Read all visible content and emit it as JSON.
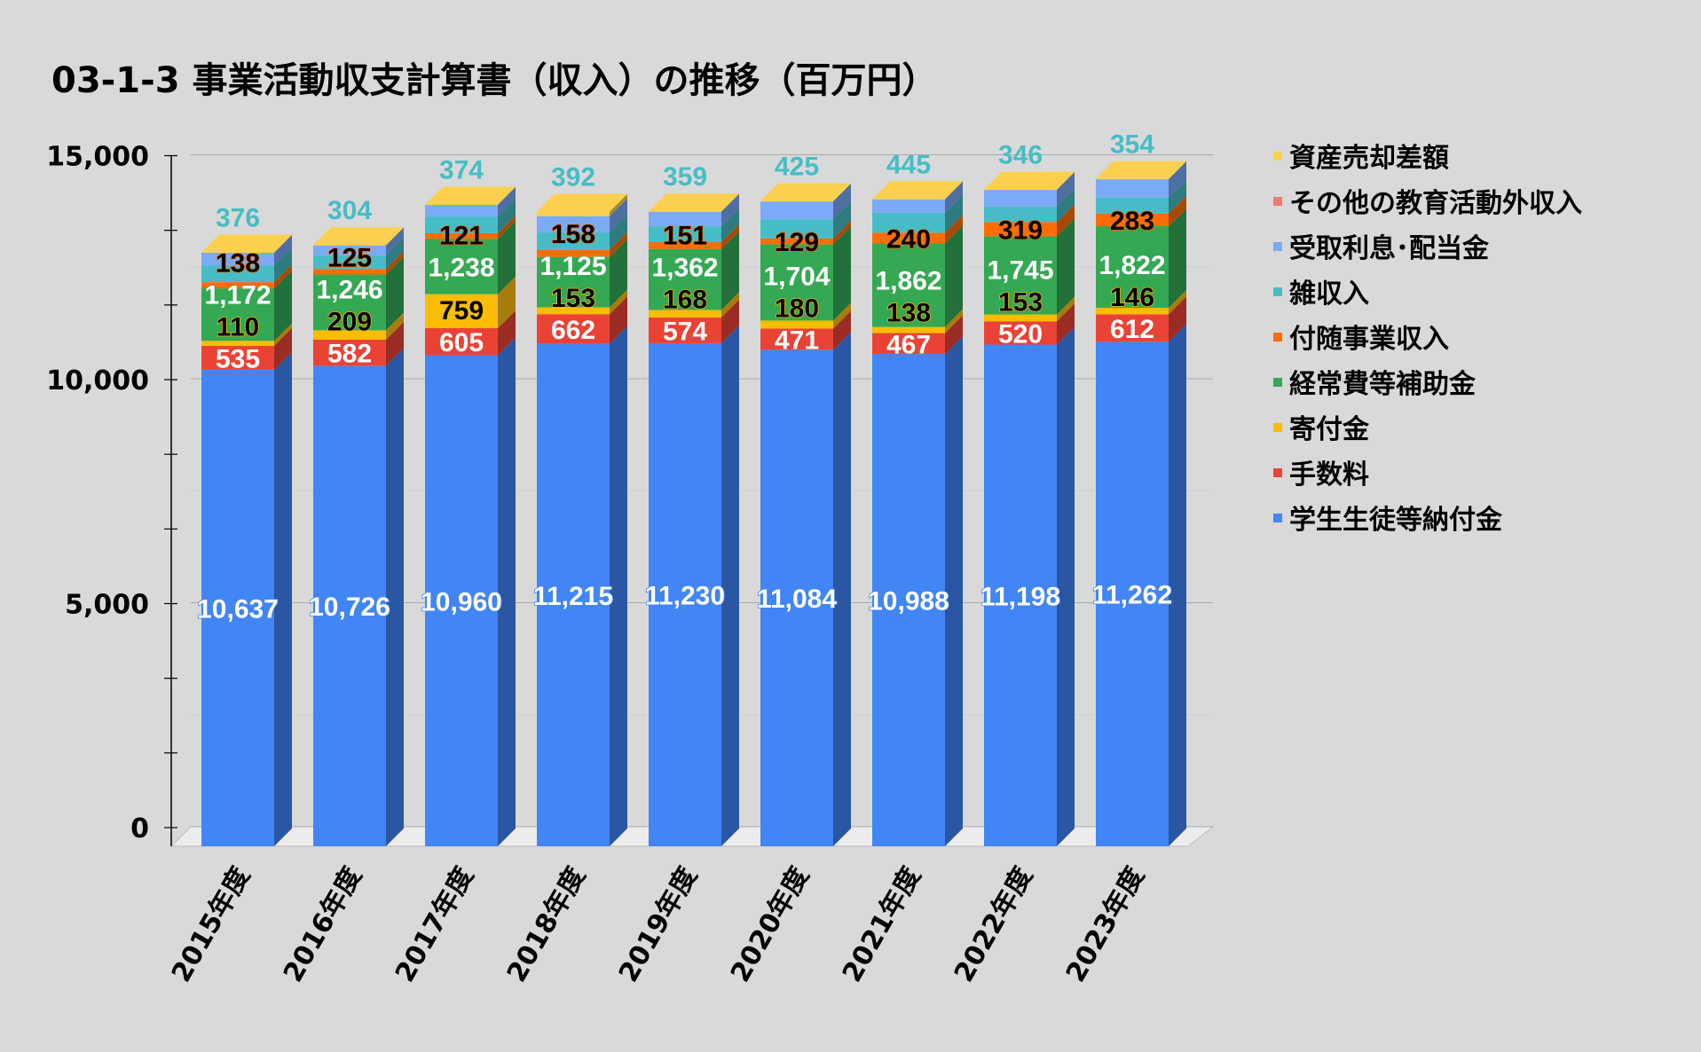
{
  "chart_data": {
    "type": "bar",
    "stacked": true,
    "three_d": true,
    "title": "03-1-3 事業活動収支計算書（収入）の推移（百万円）",
    "xlabel": "",
    "ylabel": "",
    "ylim": [
      0,
      15000
    ],
    "yticks": [
      "0",
      "5,000",
      "10,000",
      "15,000"
    ],
    "grid": true,
    "legend_position": "right",
    "categories": [
      "2015年度",
      "2016年度",
      "2017年度",
      "2018年度",
      "2019年度",
      "2020年度",
      "2021年度",
      "2022年度",
      "2023年度"
    ],
    "series": [
      {
        "name": "学生生徒等納付金",
        "color": "#4285F4",
        "side": "#2B56A3",
        "label_fill": "#ffffff",
        "label_stroke": "#4285F4",
        "labeled": true,
        "values": [
          10637,
          10726,
          10960,
          11215,
          11230,
          11084,
          10988,
          11198,
          11262
        ]
      },
      {
        "name": "手数料",
        "color": "#EA4335",
        "side": "#9A2C23",
        "label_fill": "#ffffff",
        "label_stroke": "#EA4335",
        "labeled": true,
        "values": [
          535,
          582,
          605,
          662,
          574,
          471,
          467,
          520,
          612
        ]
      },
      {
        "name": "寄付金",
        "color": "#FBBC04",
        "side": "#A67C0A",
        "label_fill": "#000000",
        "label_stroke": "#FBBC04",
        "labeled": true,
        "values": [
          110,
          209,
          759,
          153,
          168,
          180,
          138,
          153,
          146
        ]
      },
      {
        "name": "経常費等補助金",
        "color": "#34A853",
        "side": "#22703A",
        "label_fill": "#ffffff",
        "label_stroke": "#34A853",
        "labeled": true,
        "values": [
          1172,
          1246,
          1238,
          1125,
          1362,
          1704,
          1862,
          1745,
          1822
        ]
      },
      {
        "name": "付随事業収入",
        "color": "#FF6D01",
        "side": "#A84A05",
        "label_fill": "#000000",
        "label_stroke": "#FF6D01",
        "labeled": true,
        "values": [
          138,
          125,
          121,
          158,
          151,
          129,
          240,
          319,
          283
        ]
      },
      {
        "name": "雑収入",
        "color": "#46BDC6",
        "side": "#2E7B80",
        "label_fill": "#46BDC6",
        "label_stroke": "none",
        "labeled": true,
        "label_above": true,
        "values": [
          376,
          304,
          374,
          392,
          359,
          425,
          445,
          346,
          354
        ]
      },
      {
        "name": "受取利息･配当金",
        "color": "#7BAAF7",
        "side": "#4F6FA3",
        "labeled": false,
        "estimated": true,
        "values": [
          280,
          220,
          260,
          360,
          320,
          400,
          300,
          370,
          410
        ]
      },
      {
        "name": "その他の教育活動外収入",
        "color": "#F07B72",
        "side": "#9E5049",
        "labeled": false,
        "estimated": true,
        "values": [
          0,
          0,
          0,
          0,
          0,
          0,
          0,
          0,
          0
        ]
      },
      {
        "name": "資産売却差額",
        "color": "#FCD04F",
        "side": "#A68A35",
        "labeled": false,
        "estimated": true,
        "values": [
          10,
          10,
          10,
          100,
          10,
          10,
          10,
          10,
          10
        ]
      }
    ]
  }
}
